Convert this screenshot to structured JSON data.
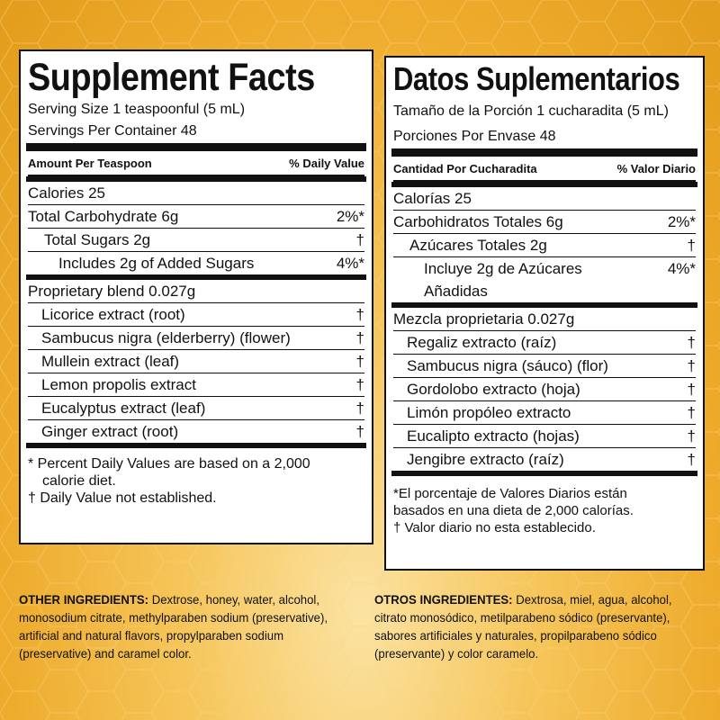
{
  "english": {
    "title": "Supplement Facts",
    "serving_size": "Serving Size 1 teaspoonful (5 mL)",
    "servings_per_container": "Servings Per Container 48",
    "amount_header": "Amount Per Teaspoon",
    "dv_header": "% Daily Value",
    "calories": "Calories 25",
    "carb_label": "Total Carbohydrate 6g",
    "carb_dv": "2%*",
    "sugars_label": "Total Sugars 2g",
    "sugars_dv": "†",
    "added_sugars_label": "Includes 2g of Added Sugars",
    "added_sugars_dv": "4%*",
    "blend_label": "Proprietary blend 0.027g",
    "ingredients": [
      {
        "name": "Licorice extract (root)",
        "dv": "†"
      },
      {
        "name": "Sambucus nigra (elderberry) (flower)",
        "dv": "†"
      },
      {
        "name": "Mullein extract (leaf)",
        "dv": "†"
      },
      {
        "name": "Lemon propolis extract",
        "dv": "†"
      },
      {
        "name": "Eucalyptus extract (leaf)",
        "dv": "†"
      },
      {
        "name": "Ginger extract (root)",
        "dv": "†"
      }
    ],
    "footnote_1a": "* Percent Daily Values are based on a 2,000",
    "footnote_1b": "calorie diet.",
    "footnote_2": "† Daily Value not established.",
    "other_label": "OTHER INGREDIENTS:",
    "other_text": "Dextrose, honey, water, alcohol, monosodium citrate, methylparaben sodium (preservative), artificial and natural flavors, propylparaben sodium (preservative) and caramel color."
  },
  "spanish": {
    "title": "Datos Suplementarios",
    "serving_size": "Tamaño de la Porción 1 cucharadita (5 mL)",
    "servings_per_container": "Porciones Por Envase 48",
    "amount_header": "Cantidad Por Cucharadita",
    "dv_header": "% Valor Diario",
    "calories": "Calorías 25",
    "carb_label": "Carbohidratos Totales 6g",
    "carb_dv": "2%*",
    "sugars_label": "Azúcares Totales 2g",
    "sugars_dv": "†",
    "added_sugars_label_1": "Incluye 2g de Azúcares",
    "added_sugars_label_2": "Añadidas",
    "added_sugars_dv": "4%*",
    "blend_label": "Mezcla proprietaria 0.027g",
    "ingredients": [
      {
        "name": "Regaliz extracto (raíz)",
        "dv": "†"
      },
      {
        "name": "Sambucus nigra (sáuco) (flor)",
        "dv": "†"
      },
      {
        "name": "Gordolobo extracto (hoja)",
        "dv": "†"
      },
      {
        "name": "Limón propóleo extracto",
        "dv": "†"
      },
      {
        "name": "Eucalipto extracto (hojas)",
        "dv": "†"
      },
      {
        "name": "Jengibre extracto (raíz)",
        "dv": "†"
      }
    ],
    "footnote_1a": "*El porcentaje de Valores Diarios están",
    "footnote_1b": "basados en una dieta de 2,000 calorías.",
    "footnote_2": "† Valor diario no esta establecido.",
    "other_label": "OTROS INGREDIENTES:",
    "other_text": "Dextrosa, miel, agua, alcohol, citrato monosódico, metilparabeno sódico (preservante), sabores artificiales y naturales, propilparabeno sódico (preservante) y color caramelo."
  },
  "colors": {
    "background": "#eeab2c",
    "panel": "#ffffff",
    "ink": "#111111"
  }
}
